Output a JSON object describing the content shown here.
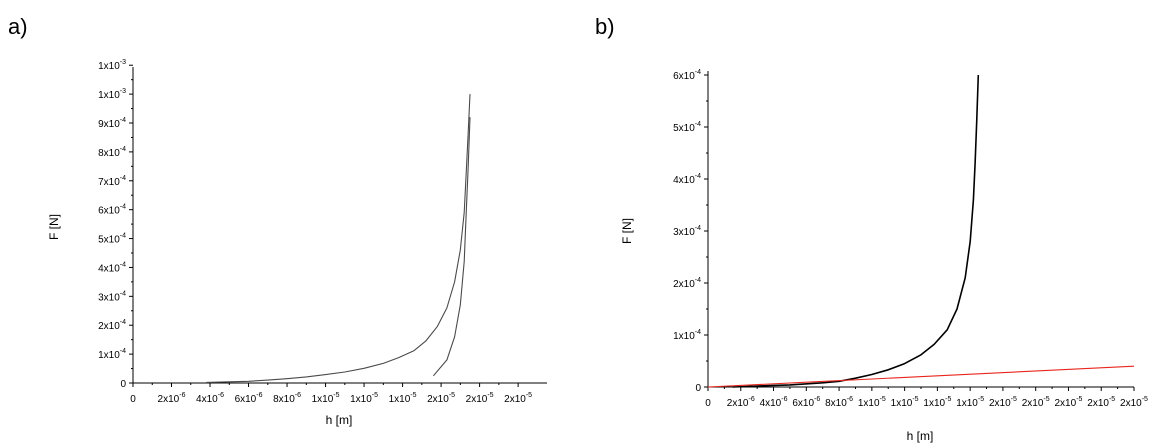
{
  "panels": [
    {
      "label": "a)",
      "chart_data": {
        "type": "line",
        "xlabel": "h [m]",
        "ylabel": "F [N]",
        "xlim": [
          0,
          2.15e-05
        ],
        "ylim": [
          0,
          0.00108
        ],
        "grid": false,
        "x_ticks": [
          {
            "value": 0,
            "mant": "0",
            "exp": ""
          },
          {
            "value": 2e-06,
            "mant": "2x10",
            "exp": "-6"
          },
          {
            "value": 4e-06,
            "mant": "4x10",
            "exp": "-6"
          },
          {
            "value": 6e-06,
            "mant": "6x10",
            "exp": "-6"
          },
          {
            "value": 8e-06,
            "mant": "8x10",
            "exp": "-6"
          },
          {
            "value": 1e-05,
            "mant": "1x10",
            "exp": "-5"
          },
          {
            "value": 1.2e-05,
            "mant": "1x10",
            "exp": "-5"
          },
          {
            "value": 1.4e-05,
            "mant": "1x10",
            "exp": "-5"
          },
          {
            "value": 1.6e-05,
            "mant": "2x10",
            "exp": "-5"
          },
          {
            "value": 1.8e-05,
            "mant": "2x10",
            "exp": "-5"
          },
          {
            "value": 2e-05,
            "mant": "2x10",
            "exp": "-5"
          }
        ],
        "y_ticks": [
          {
            "value": 0,
            "mant": "0",
            "exp": ""
          },
          {
            "value": 0.0001,
            "mant": "1x10",
            "exp": "-4"
          },
          {
            "value": 0.0002,
            "mant": "2x10",
            "exp": "-4"
          },
          {
            "value": 0.0003,
            "mant": "3x10",
            "exp": "-4"
          },
          {
            "value": 0.0004,
            "mant": "4x10",
            "exp": "-4"
          },
          {
            "value": 0.0005,
            "mant": "5x10",
            "exp": "-4"
          },
          {
            "value": 0.0006,
            "mant": "6x10",
            "exp": "-4"
          },
          {
            "value": 0.0007,
            "mant": "7x10",
            "exp": "-4"
          },
          {
            "value": 0.0008,
            "mant": "8x10",
            "exp": "-4"
          },
          {
            "value": 0.0009,
            "mant": "9x10",
            "exp": "-4"
          },
          {
            "value": 0.001,
            "mant": "1x10",
            "exp": "-3"
          },
          {
            "value": 0.0011,
            "mant": "1x10",
            "exp": "-3"
          }
        ],
        "series": [
          {
            "color": "#4a4a4a",
            "x": [
              3.8e-06,
              5e-06,
              6e-06,
              7e-06,
              8e-06,
              9e-06,
              1e-05,
              1.1e-05,
              1.2e-05,
              1.3e-05,
              1.38e-05,
              1.46e-05,
              1.52e-05,
              1.58e-05,
              1.63e-05,
              1.67e-05,
              1.7e-05,
              1.72e-05,
              1.73e-05,
              1.74e-05,
              1.75e-05
            ],
            "y": [
              2e-06,
              4e-06,
              6e-06,
              1e-05,
              1.5e-05,
              2.1e-05,
              2.9e-05,
              3.8e-05,
              5.1e-05,
              6.8e-05,
              8.8e-05,
              0.000112,
              0.000145,
              0.000195,
              0.00026,
              0.00035,
              0.00046,
              0.00059,
              0.00072,
              0.00086,
              0.001
            ]
          },
          {
            "color": "#4a4a4a",
            "x": [
              1.56e-05,
              1.63e-05,
              1.67e-05,
              1.7e-05,
              1.72e-05,
              1.73e-05,
              1.74e-05,
              1.75e-05
            ],
            "y": [
              2.5e-05,
              8e-05,
              0.00016,
              0.00027,
              0.00042,
              0.00058,
              0.00074,
              0.00092
            ]
          }
        ]
      }
    },
    {
      "label": "b)",
      "chart_data": {
        "type": "line",
        "xlabel": "h [m]",
        "ylabel": "F [N]",
        "xlim": [
          0,
          2.6e-05
        ],
        "ylim": [
          0,
          0.0006
        ],
        "grid": false,
        "x_ticks": [
          {
            "value": 0,
            "mant": "0",
            "exp": ""
          },
          {
            "value": 2e-06,
            "mant": "2x10",
            "exp": "-6"
          },
          {
            "value": 4e-06,
            "mant": "4x10",
            "exp": "-6"
          },
          {
            "value": 6e-06,
            "mant": "6x10",
            "exp": "-6"
          },
          {
            "value": 8e-06,
            "mant": "8x10",
            "exp": "-6"
          },
          {
            "value": 1e-05,
            "mant": "1x10",
            "exp": "-5"
          },
          {
            "value": 1.2e-05,
            "mant": "1x10",
            "exp": "-5"
          },
          {
            "value": 1.4e-05,
            "mant": "1x10",
            "exp": "-5"
          },
          {
            "value": 1.6e-05,
            "mant": "1x10",
            "exp": "-5"
          },
          {
            "value": 1.8e-05,
            "mant": "2x10",
            "exp": "-5"
          },
          {
            "value": 2e-05,
            "mant": "2x10",
            "exp": "-5"
          },
          {
            "value": 2.2e-05,
            "mant": "2x10",
            "exp": "-5"
          },
          {
            "value": 2.4e-05,
            "mant": "2x10",
            "exp": "-5"
          },
          {
            "value": 2.6e-05,
            "mant": "2x10",
            "exp": "-5"
          }
        ],
        "y_ticks": [
          {
            "value": 0,
            "mant": "0",
            "exp": ""
          },
          {
            "value": 0.0001,
            "mant": "1x10",
            "exp": "-4"
          },
          {
            "value": 0.0002,
            "mant": "2x10",
            "exp": "-4"
          },
          {
            "value": 0.0003,
            "mant": "3x10",
            "exp": "-4"
          },
          {
            "value": 0.0004,
            "mant": "4x10",
            "exp": "-4"
          },
          {
            "value": 0.0005,
            "mant": "5x10",
            "exp": "-4"
          },
          {
            "value": 0.0006,
            "mant": "6x10",
            "exp": "-4"
          }
        ],
        "series": [
          {
            "color": "#000000",
            "x": [
              1.5e-06,
              3e-06,
              5e-06,
              7e-06,
              8e-06,
              9e-06,
              1e-05,
              1.1e-05,
              1.2e-05,
              1.3e-05,
              1.38e-05,
              1.46e-05,
              1.52e-05,
              1.57e-05,
              1.6e-05,
              1.62e-05,
              1.63e-05,
              1.64e-05,
              1.65e-05
            ],
            "y": [
              0,
              2e-06,
              4e-06,
              8e-06,
              1.1e-05,
              1.7e-05,
              2.4e-05,
              3.3e-05,
              4.5e-05,
              6.2e-05,
              8.2e-05,
              0.00011,
              0.00015,
              0.00021,
              0.00028,
              0.00036,
              0.00043,
              0.00051,
              0.0006
            ]
          },
          {
            "color": "#e8261c",
            "x": [
              0,
              2.6e-05
            ],
            "y": [
              0,
              4e-05
            ]
          }
        ]
      }
    }
  ]
}
